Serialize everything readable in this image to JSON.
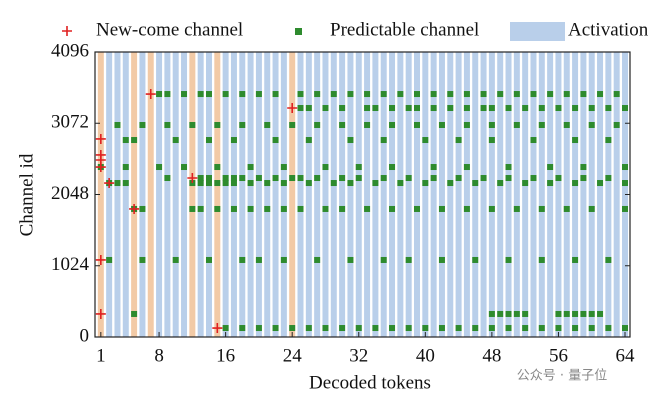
{
  "chart_data": {
    "type": "token-activation",
    "x_label": "Decoded tokens",
    "y_label": "Channel id",
    "xlim": [
      0.3,
      64.6
    ],
    "xticks": [
      1,
      8,
      16,
      24,
      32,
      40,
      48,
      56,
      64
    ],
    "ylim": [
      0,
      4096
    ],
    "yticks": [
      0,
      1024,
      2048,
      3072,
      4096
    ],
    "activation": {
      "name": "Activation",
      "color": "#b9cfea",
      "highlight_color": "#f2caa6",
      "x": [
        1,
        2,
        3,
        4,
        5,
        6,
        7,
        8,
        9,
        10,
        11,
        12,
        13,
        14,
        15,
        16,
        17,
        18,
        19,
        20,
        21,
        22,
        23,
        24,
        25,
        26,
        27,
        28,
        29,
        30,
        31,
        32,
        33,
        34,
        35,
        36,
        37,
        38,
        39,
        40,
        41,
        42,
        43,
        44,
        45,
        46,
        47,
        48,
        49,
        50,
        51,
        52,
        53,
        54,
        55,
        56,
        57,
        58,
        59,
        60,
        61,
        62,
        63,
        64
      ],
      "highlight_x": [
        1,
        5,
        7,
        12,
        15,
        24
      ]
    },
    "new_come": {
      "name": "New-come channel",
      "color": "#e02020",
      "x": [
        1,
        1,
        1,
        1,
        1,
        1,
        2,
        5,
        7,
        12,
        15,
        24
      ],
      "values": [
        2846,
        2616,
        2544,
        2443,
        1107,
        331,
        2213,
        1840,
        3492,
        2285,
        129,
        3291
      ]
    },
    "predictable": {
      "name": "Predictable channel",
      "color": "#2e8b2e",
      "rows": [
        {
          "y": 3492,
          "x": [
            8,
            9,
            11,
            13,
            14,
            16,
            18,
            20,
            22,
            25,
            27,
            29,
            31,
            33,
            35,
            37,
            39,
            41,
            43,
            45,
            47,
            49,
            51,
            53,
            55,
            57,
            59,
            61,
            63
          ]
        },
        {
          "y": 3291,
          "x": [
            25,
            26,
            28,
            30,
            33,
            34,
            36,
            38,
            39,
            41,
            43,
            45,
            47,
            48,
            50,
            52,
            54,
            56,
            58,
            60,
            62,
            64
          ]
        },
        {
          "y": 3047,
          "x": [
            3,
            6,
            9,
            12,
            15,
            18,
            21,
            24,
            27,
            30,
            33,
            36,
            39,
            42,
            45,
            48,
            51,
            54,
            57,
            60,
            63
          ]
        },
        {
          "y": 2831,
          "x": [
            4,
            5,
            10,
            14,
            17,
            22,
            26,
            31,
            35,
            40,
            44,
            48,
            53,
            58,
            62
          ]
        },
        {
          "y": 2443,
          "x": [
            1,
            4,
            8,
            11,
            15,
            19,
            23,
            28,
            32,
            36,
            41,
            45,
            50,
            55,
            59,
            64
          ]
        },
        {
          "y": 2285,
          "x": [
            9,
            13,
            14,
            16,
            17,
            18,
            20,
            22,
            24,
            25,
            27,
            30,
            32,
            35,
            38,
            41,
            44,
            47,
            50,
            53,
            56,
            59,
            62
          ]
        },
        {
          "y": 2213,
          "x": [
            2,
            3,
            4,
            12,
            13,
            14,
            15,
            16,
            17,
            19,
            21,
            23,
            26,
            29,
            31,
            34,
            37,
            40,
            43,
            46,
            49,
            52,
            55,
            58,
            61,
            64
          ]
        },
        {
          "y": 1840,
          "x": [
            5,
            6,
            12,
            13,
            15,
            17,
            19,
            21,
            23,
            25,
            28,
            30,
            33,
            36,
            39,
            42,
            45,
            48,
            51,
            54,
            57,
            60,
            64
          ]
        },
        {
          "y": 1107,
          "x": [
            2,
            6,
            10,
            14,
            18,
            20,
            23,
            27,
            31,
            35,
            38,
            42,
            46,
            50,
            54,
            58,
            62
          ]
        },
        {
          "y": 331,
          "x": [
            5,
            48,
            49,
            50,
            51,
            52,
            56,
            57,
            58,
            59,
            60,
            61
          ]
        },
        {
          "y": 129,
          "x": [
            16,
            18,
            20,
            22,
            24,
            26,
            28,
            30,
            32,
            34,
            36,
            38,
            40,
            42,
            44,
            46,
            48,
            50,
            52,
            54,
            56,
            58,
            60,
            62,
            64
          ]
        }
      ]
    },
    "watermark": "公众号 · 量子位"
  }
}
